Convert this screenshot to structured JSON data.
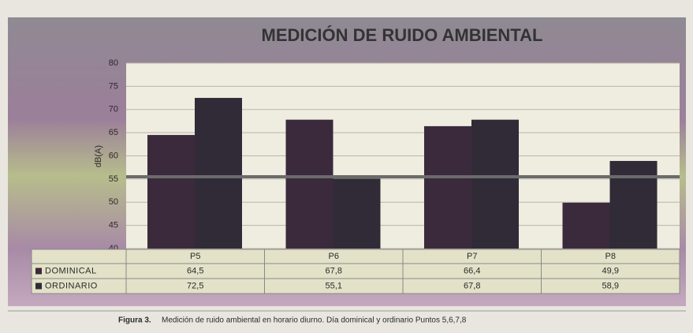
{
  "chart_data": {
    "type": "bar",
    "title": "MEDICIÓN DE RUIDO AMBIENTAL",
    "y_label": "dB(A)",
    "categories": [
      "P5",
      "P6",
      "P7",
      "P8"
    ],
    "series": [
      {
        "name": "DOMINICAL",
        "color": "#3b2a3c",
        "values": [
          64.5,
          67.8,
          66.4,
          49.9
        ],
        "value_labels": [
          "64,5",
          "67,8",
          "66,4",
          "49,9"
        ]
      },
      {
        "name": "ORDINARIO",
        "color": "#302b36",
        "values": [
          72.5,
          55.1,
          67.8,
          58.9
        ],
        "value_labels": [
          "72,5",
          "55,1",
          "67,8",
          "58,9"
        ]
      }
    ],
    "reference_line": 55.5,
    "reference_color": "#6b6b6b",
    "ylim": [
      40,
      80
    ],
    "yticks": [
      40,
      45,
      50,
      55,
      60,
      65,
      70,
      75,
      80
    ],
    "grid": true,
    "caption_label": "Figura 3.",
    "caption": "Medición de ruido ambiental en horario diurno. Día dominical y ordinario Puntos 5,6,7,8"
  }
}
